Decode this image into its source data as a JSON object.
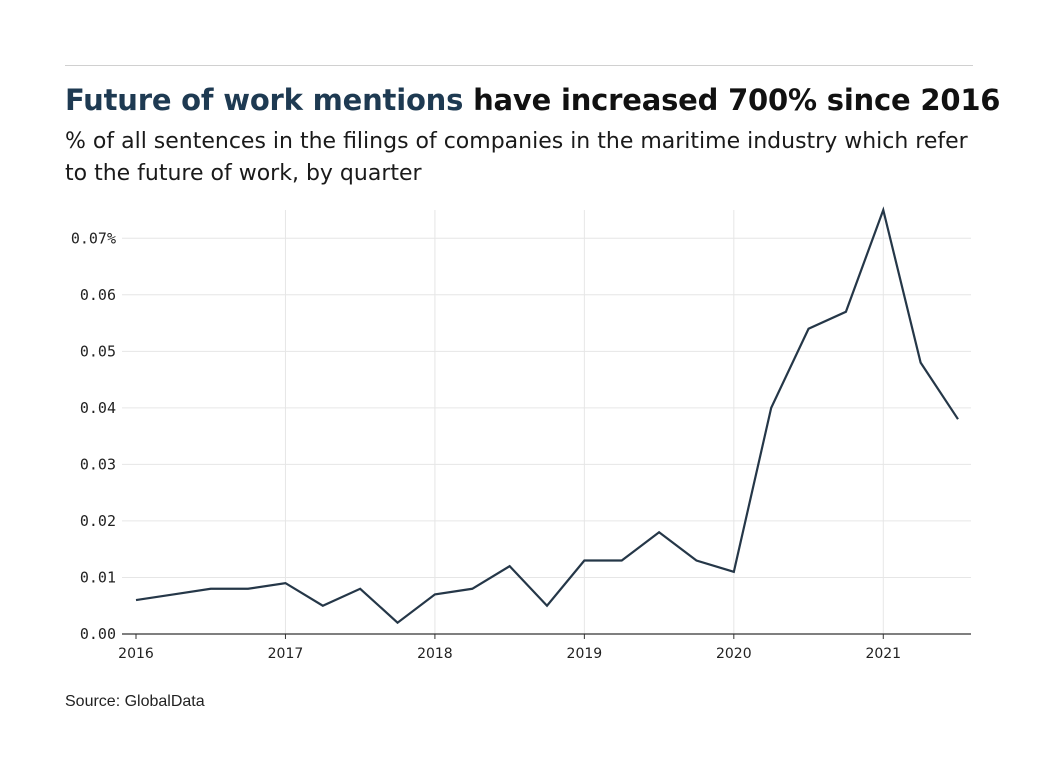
{
  "header": {
    "title_highlight": "Future of work mentions",
    "title_rest": " have increased 700% since 2016",
    "subtitle": "% of all sentences in the filings of companies in the maritime industry which refer to the future of work, by quarter"
  },
  "footer": {
    "source": "Source: GlobalData"
  },
  "colors": {
    "line": "#253748",
    "title_highlight": "#1e3a52",
    "grid": "#e6e6e6",
    "axis": "#333333"
  },
  "chart_data": {
    "type": "line",
    "title": "Future of work mentions have increased 700% since 2016",
    "subtitle": "% of all sentences in the filings of companies in the maritime industry which refer to the future of work, by quarter",
    "xlabel": "",
    "ylabel": "",
    "xlim": [
      2016,
      2021.5
    ],
    "ylim": [
      0,
      0.075
    ],
    "x_ticks": [
      2016,
      2017,
      2018,
      2019,
      2020,
      2021
    ],
    "x_tick_labels": [
      "2016",
      "2017",
      "2018",
      "2019",
      "2020",
      "2021"
    ],
    "y_ticks": [
      0,
      0.01,
      0.02,
      0.03,
      0.04,
      0.05,
      0.06,
      0.07
    ],
    "y_tick_labels": [
      "0.00",
      "0.01",
      "0.02",
      "0.03",
      "0.04",
      "0.05",
      "0.06",
      "0.07%"
    ],
    "grid": true,
    "legend": "none",
    "series": [
      {
        "x": [
          "2016 Q1",
          "2016 Q2",
          "2016 Q3",
          "2016 Q4",
          "2017 Q1",
          "2017 Q2",
          "2017 Q3",
          "2017 Q4",
          "2018 Q1",
          "2018 Q2",
          "2018 Q3",
          "2018 Q4",
          "2019 Q1",
          "2019 Q2",
          "2019 Q3",
          "2019 Q4",
          "2020 Q1",
          "2020 Q2",
          "2020 Q3",
          "2020 Q4",
          "2021 Q1",
          "2021 Q2",
          "2021 Q3"
        ],
        "values": [
          0.006,
          0.007,
          0.008,
          0.008,
          0.009,
          0.005,
          0.008,
          0.002,
          0.007,
          0.008,
          0.012,
          0.005,
          0.013,
          0.013,
          0.018,
          0.013,
          0.011,
          0.04,
          0.054,
          0.057,
          0.075,
          0.048,
          0.038
        ]
      }
    ]
  }
}
